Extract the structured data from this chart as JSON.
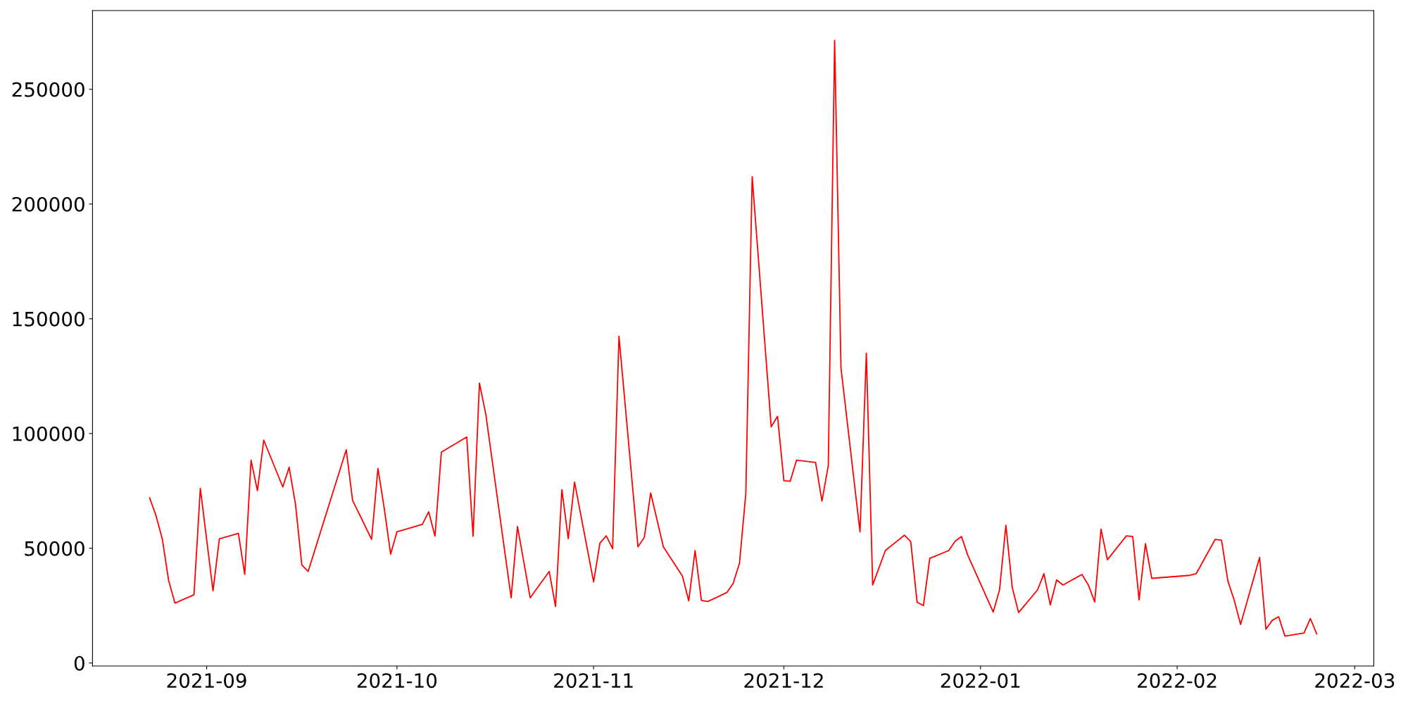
{
  "chart_data": {
    "type": "line",
    "x": [
      "2021-08-23",
      "2021-08-24",
      "2021-08-25",
      "2021-08-26",
      "2021-08-27",
      "2021-08-30",
      "2021-08-31",
      "2021-09-02",
      "2021-09-03",
      "2021-09-06",
      "2021-09-07",
      "2021-09-08",
      "2021-09-09",
      "2021-09-10",
      "2021-09-13",
      "2021-09-14",
      "2021-09-15",
      "2021-09-16",
      "2021-09-17",
      "2021-09-23",
      "2021-09-24",
      "2021-09-27",
      "2021-09-28",
      "2021-09-29",
      "2021-09-30",
      "2021-10-01",
      "2021-10-05",
      "2021-10-06",
      "2021-10-07",
      "2021-10-08",
      "2021-10-12",
      "2021-10-13",
      "2021-10-14",
      "2021-10-15",
      "2021-10-19",
      "2021-10-20",
      "2021-10-21",
      "2021-10-22",
      "2021-10-25",
      "2021-10-26",
      "2021-10-27",
      "2021-10-28",
      "2021-10-29",
      "2021-11-01",
      "2021-11-02",
      "2021-11-03",
      "2021-11-04",
      "2021-11-05",
      "2021-11-08",
      "2021-11-09",
      "2021-11-10",
      "2021-11-12",
      "2021-11-15",
      "2021-11-16",
      "2021-11-17",
      "2021-11-18",
      "2021-11-19",
      "2021-11-22",
      "2021-11-23",
      "2021-11-24",
      "2021-11-25",
      "2021-11-26",
      "2021-11-29",
      "2021-11-30",
      "2021-12-01",
      "2021-12-02",
      "2021-12-03",
      "2021-12-06",
      "2021-12-07",
      "2021-12-08",
      "2021-12-09",
      "2021-12-10",
      "2021-12-13",
      "2021-12-14",
      "2021-12-15",
      "2021-12-17",
      "2021-12-20",
      "2021-12-21",
      "2021-12-22",
      "2021-12-23",
      "2021-12-24",
      "2021-12-27",
      "2021-12-28",
      "2021-12-29",
      "2021-12-30",
      "2022-01-03",
      "2022-01-04",
      "2022-01-05",
      "2022-01-06",
      "2022-01-07",
      "2022-01-10",
      "2022-01-11",
      "2022-01-12",
      "2022-01-13",
      "2022-01-14",
      "2022-01-17",
      "2022-01-18",
      "2022-01-19",
      "2022-01-20",
      "2022-01-21",
      "2022-01-24",
      "2022-01-25",
      "2022-01-26",
      "2022-01-27",
      "2022-01-28",
      "2022-02-03",
      "2022-02-04",
      "2022-02-07",
      "2022-02-08",
      "2022-02-09",
      "2022-02-10",
      "2022-02-11",
      "2022-02-14",
      "2022-02-15",
      "2022-02-16",
      "2022-02-17",
      "2022-02-18",
      "2022-02-21",
      "2022-02-22",
      "2022-02-23"
    ],
    "series": [
      {
        "color": "#ff0000",
        "values": [
          72000,
          64300,
          54100,
          36000,
          26100,
          29700,
          76100,
          31400,
          54100,
          56500,
          38600,
          88400,
          75100,
          97100,
          76700,
          85300,
          69200,
          42700,
          39900,
          92900,
          70900,
          53900,
          84800,
          67300,
          47400,
          57200,
          60400,
          65900,
          55300,
          91900,
          98500,
          55200,
          122000,
          108500,
          28400,
          59500,
          44000,
          28400,
          39900,
          24600,
          75500,
          54200,
          78800,
          35300,
          52300,
          55400,
          49800,
          142400,
          50600,
          54800,
          74100,
          50600,
          37900,
          27100,
          49000,
          27300,
          26800,
          30700,
          34700,
          43500,
          73800,
          211900,
          102900,
          107500,
          79400,
          79200,
          88400,
          87400,
          70500,
          86000,
          271300,
          128600,
          57100,
          135000,
          34000,
          49000,
          55700,
          52900,
          26500,
          25000,
          45600,
          49000,
          53100,
          55100,
          46900,
          22200,
          31900,
          60000,
          33000,
          22000,
          31900,
          38900,
          25300,
          36200,
          34000,
          38600,
          34000,
          26600,
          58300,
          45000,
          55400,
          55100,
          27500,
          52000,
          36900,
          38200,
          38900,
          53900,
          53500,
          35700,
          27300,
          16800,
          46000,
          14700,
          18600,
          20200,
          11700,
          13100,
          19400,
          12700
        ]
      }
    ],
    "xlim": [
      "2021-08-14",
      "2022-03-04"
    ],
    "xticks": [
      {
        "value": "2021-09-01",
        "label": "2021-09"
      },
      {
        "value": "2021-10-01",
        "label": "2021-10"
      },
      {
        "value": "2021-11-01",
        "label": "2021-11"
      },
      {
        "value": "2021-12-01",
        "label": "2021-12"
      },
      {
        "value": "2022-01-01",
        "label": "2022-01"
      },
      {
        "value": "2022-02-01",
        "label": "2022-02"
      },
      {
        "value": "2022-03-01",
        "label": "2022-03"
      }
    ],
    "ylim": [
      -1300,
      284300
    ],
    "yticks": [
      0,
      50000,
      100000,
      150000,
      200000,
      250000
    ],
    "grid": false,
    "legend": false
  }
}
